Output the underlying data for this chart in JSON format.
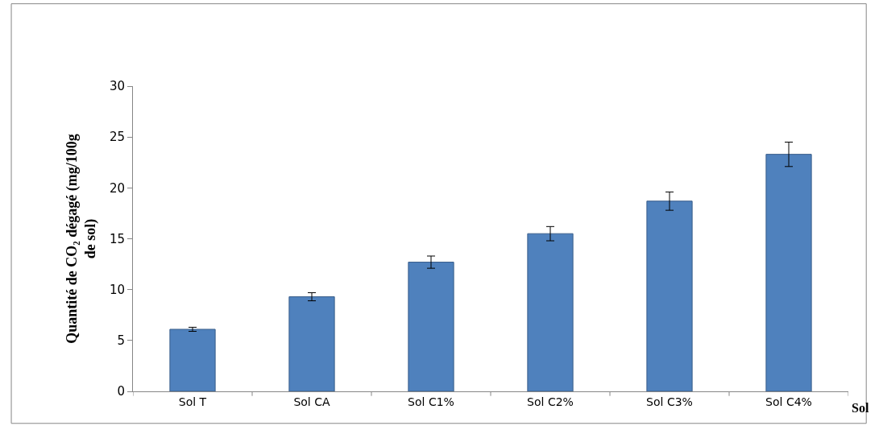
{
  "chart_data": {
    "type": "bar",
    "categories": [
      "Sol T",
      "Sol CA",
      "Sol C1%",
      "Sol C2%",
      "Sol C3%",
      "Sol C4%"
    ],
    "values": [
      6.1,
      9.3,
      12.7,
      15.5,
      18.7,
      23.3
    ],
    "errors": [
      0.2,
      0.4,
      0.6,
      0.7,
      0.9,
      1.2
    ],
    "color": "#4f81bd",
    "xlabel": "Sol",
    "ylabel": "Quantité de CO₂ dégagé (mg/100g de sol)",
    "ylim": [
      0,
      30
    ],
    "yticks": [
      0,
      5,
      10,
      15,
      20,
      25,
      30
    ]
  }
}
